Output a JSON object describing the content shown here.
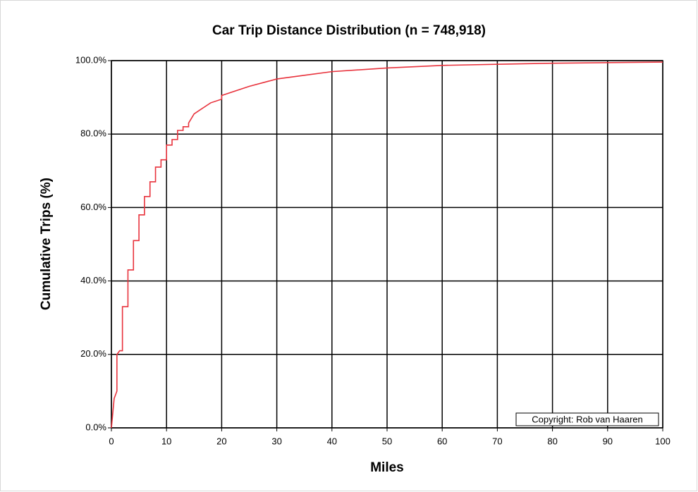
{
  "chart_data": {
    "type": "line",
    "title": "Car Trip Distance Distribution (n = 748,918)",
    "x_label": "Miles",
    "y_label": "Cumulative Trips (%)",
    "annotation": "Copyright: Rob van Haaren",
    "xlim": [
      0,
      100
    ],
    "xticks": [
      0,
      10,
      20,
      30,
      40,
      50,
      60,
      70,
      80,
      90,
      100
    ],
    "ylim": [
      0,
      100
    ],
    "yticks": [
      {
        "value": 0,
        "label": "0.0%"
      },
      {
        "value": 20,
        "label": "20.0%"
      },
      {
        "value": 40,
        "label": "40.0%"
      },
      {
        "value": 60,
        "label": "60.0%"
      },
      {
        "value": 80,
        "label": "80.0%"
      },
      {
        "value": 100,
        "label": "100.0%"
      }
    ],
    "grid": true,
    "series": [
      {
        "color": "#e8323c",
        "x": [
          0,
          0.5,
          1,
          1,
          1.5,
          2,
          2,
          3,
          3,
          4,
          4,
          5,
          5,
          6,
          6,
          7,
          7,
          8,
          8,
          9,
          9,
          10,
          10,
          11,
          11,
          12,
          12,
          13,
          13,
          14,
          14,
          15,
          16,
          17,
          18,
          20,
          20,
          25,
          30,
          35,
          40,
          50,
          60,
          70,
          80,
          100
        ],
        "values": [
          0,
          8,
          10,
          20,
          21,
          21,
          33,
          33,
          43,
          43,
          51,
          51,
          58,
          58,
          63,
          63,
          67,
          67,
          71,
          71,
          73,
          73,
          77,
          77,
          78.5,
          78.5,
          81,
          81,
          82,
          82,
          83,
          85.5,
          86.5,
          87.5,
          88.5,
          89.5,
          90.5,
          93,
          95,
          96,
          97,
          98,
          98.7,
          99,
          99.3,
          99.6
        ]
      }
    ]
  }
}
